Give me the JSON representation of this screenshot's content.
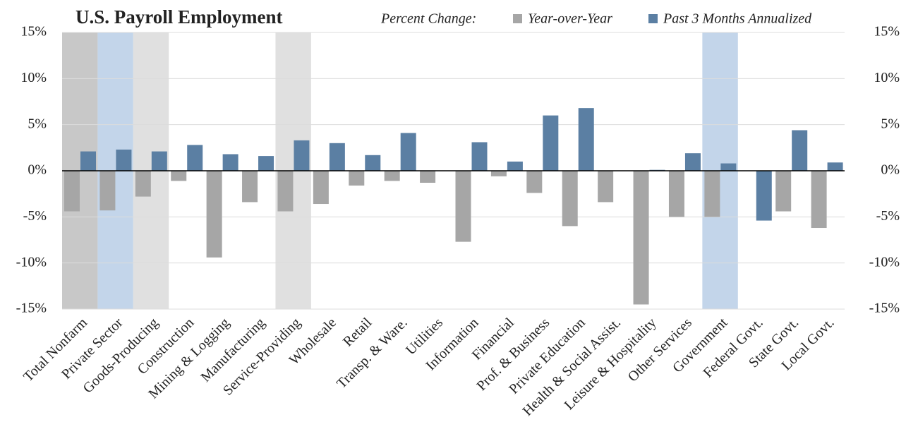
{
  "chart_data": {
    "type": "bar",
    "title": "U.S. Payroll Employment",
    "legend_title": "Percent Change:",
    "categories": [
      "Total Nonfarm",
      "Private Sector",
      "Goods-Producing",
      "Construction",
      "Mining & Logging",
      "Manufacturing",
      "Service-Providing",
      "Wholesale",
      "Retail",
      "Transp. & Ware.",
      "Utilities",
      "Information",
      "Financial",
      "Prof. & Business",
      "Private Education",
      "Health & Social Assist.",
      "Leisure & Hospitality",
      "Other Services",
      "Government",
      "Federal Govt.",
      "State Govt.",
      "Local Govt."
    ],
    "series": [
      {
        "name": "Year-over-Year",
        "color": "#a6a6a6",
        "values": [
          -4.4,
          -4.3,
          -2.8,
          -1.1,
          -9.4,
          -3.4,
          -4.4,
          -3.6,
          -1.6,
          -1.1,
          -1.3,
          -7.7,
          -0.6,
          -2.4,
          -6.0,
          -3.4,
          -14.5,
          -5.0,
          -5.0,
          0,
          -4.4,
          -6.2
        ]
      },
      {
        "name": "Past 3 Months Annualized",
        "color": "#5b7fa3",
        "values": [
          2.1,
          2.3,
          2.1,
          2.8,
          1.8,
          1.6,
          3.3,
          3.0,
          1.7,
          4.1,
          0,
          3.1,
          1.0,
          6.0,
          6.8,
          0,
          0.1,
          1.9,
          0.8,
          -5.4,
          4.4,
          0.9
        ]
      }
    ],
    "highlights": [
      {
        "category": "Total Nonfarm",
        "color": "#c8c8c8"
      },
      {
        "category": "Private Sector",
        "color": "#c3d5ea"
      },
      {
        "category": "Goods-Producing",
        "color": "#e0e0e0"
      },
      {
        "category": "Service-Providing",
        "color": "#e0e0e0"
      },
      {
        "category": "Government",
        "color": "#c3d5ea"
      }
    ],
    "ylim": [
      -15,
      15
    ],
    "yticks": [
      {
        "value": -15,
        "label": "-15%"
      },
      {
        "value": -10,
        "label": "-10%"
      },
      {
        "value": -5,
        "label": "-5%"
      },
      {
        "value": 0,
        "label": "0%"
      },
      {
        "value": 5,
        "label": "5%"
      },
      {
        "value": 10,
        "label": "10%"
      },
      {
        "value": 15,
        "label": "15%"
      }
    ],
    "y2lim": [
      -15,
      15
    ],
    "y2ticks": [
      {
        "value": -15,
        "label": "-15%"
      },
      {
        "value": -10,
        "label": "-10%"
      },
      {
        "value": -5,
        "label": "-5%"
      },
      {
        "value": 0,
        "label": "0%"
      },
      {
        "value": 5,
        "label": "5%"
      },
      {
        "value": 10,
        "label": "10%"
      },
      {
        "value": 15,
        "label": "15%"
      }
    ],
    "grid": true
  }
}
